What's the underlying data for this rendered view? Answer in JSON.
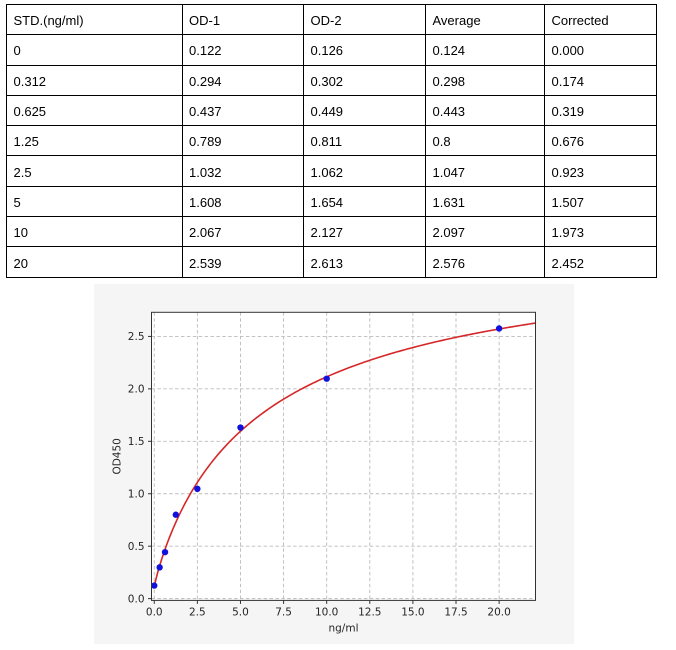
{
  "chart_data": [
    {
      "type": "table",
      "columns": [
        "STD.(ng/ml)",
        "OD-1",
        "OD-2",
        "Average",
        "Corrected"
      ],
      "rows": [
        [
          "0",
          "0.122",
          "0.126",
          "0.124",
          "0.000"
        ],
        [
          "0.312",
          "0.294",
          "0.302",
          "0.298",
          "0.174"
        ],
        [
          "0.625",
          "0.437",
          "0.449",
          "0.443",
          "0.319"
        ],
        [
          "1.25",
          "0.789",
          "0.811",
          "0.8",
          "0.676"
        ],
        [
          "2.5",
          "1.032",
          "1.062",
          "1.047",
          "0.923"
        ],
        [
          "5",
          "1.608",
          "1.654",
          "1.631",
          "1.507"
        ],
        [
          "10",
          "2.067",
          "2.127",
          "2.097",
          "1.973"
        ],
        [
          "20",
          "2.539",
          "2.613",
          "2.576",
          "2.452"
        ]
      ]
    },
    {
      "type": "scatter",
      "title": "",
      "xlabel": "ng/ml",
      "ylabel": "OD450",
      "x": [
        0,
        0.312,
        0.625,
        1.25,
        2.5,
        5,
        10,
        20
      ],
      "y": [
        0.124,
        0.298,
        0.443,
        0.8,
        1.047,
        1.631,
        2.097,
        2.576
      ],
      "xlim": [
        -0.16,
        22.11
      ],
      "ylim": [
        -0.017,
        2.73
      ],
      "xticks": [
        0,
        2.5,
        5,
        7.5,
        10,
        12.5,
        15,
        17.5,
        20
      ],
      "xtick_labels": [
        "0.0",
        "2.5",
        "5.0",
        "7.5",
        "10.0",
        "12.5",
        "15.0",
        "17.5",
        "20.0"
      ],
      "yticks": [
        0,
        0.5,
        1,
        1.5,
        2,
        2.5
      ],
      "ytick_labels": [
        "0.0",
        "0.5",
        "1.0",
        "1.5",
        "2.0",
        "2.5"
      ],
      "grid": true,
      "legend": false,
      "fit_curve": {
        "model": "4PL",
        "a": 0.1153,
        "b": 0.9182,
        "c": 6.2624,
        "d": 3.4161,
        "x_range": [
          0,
          22.11
        ]
      },
      "colors": {
        "marker": "#1111dd",
        "curve": "#d62728",
        "figure_bg": "#f5f5f5",
        "plot_bg": "#ffffff",
        "grid": "#bbbbbb",
        "spine": "#333333",
        "tick": "#333333",
        "text": "#262626"
      }
    }
  ]
}
